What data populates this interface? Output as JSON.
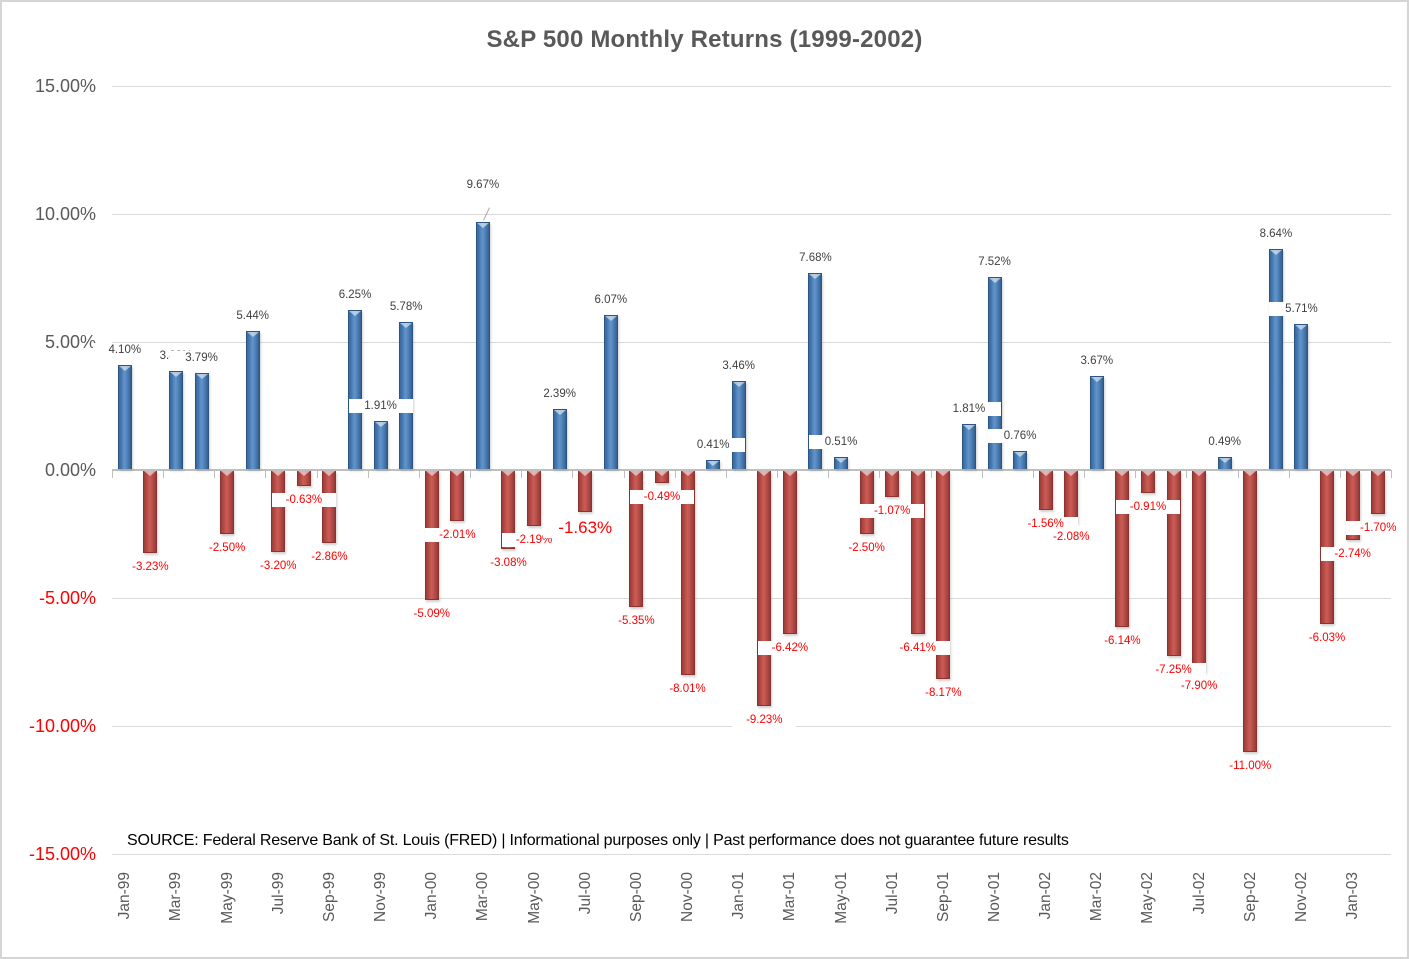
{
  "page": {
    "title": "S&P 500 Monthly Returns (1999-2002)",
    "source_note": "SOURCE: Federal Reserve Bank of St. Louis (FRED) | Informational purposes only | Past performance does not guarantee future results"
  },
  "colors": {
    "positive_bar": "#4F81BD",
    "negative_bar": "#C0504D",
    "positive_label": "#404040",
    "negative_label": "#FF0000",
    "axis_text": "#595959",
    "gridline": "#D9D9D9",
    "axis_line": "#BFBFBF",
    "title_text": "#595959"
  },
  "y_axis": {
    "tick_labels": [
      "15.00%",
      "10.00%",
      "5.00%",
      "0.00%",
      "-5.00%",
      "-10.00%",
      "-15.00%"
    ],
    "tick_values": [
      15,
      10,
      5,
      0,
      -5,
      -10,
      -15
    ]
  },
  "x_axis": {
    "tick_labels": [
      "Jan-99",
      "Mar-99",
      "May-99",
      "Jul-99",
      "Sep-99",
      "Nov-99",
      "Jan-00",
      "Mar-00",
      "May-00",
      "Jul-00",
      "Sep-00",
      "Nov-00",
      "Jan-01",
      "Mar-01",
      "May-01",
      "Jul-01",
      "Sep-01",
      "Nov-01",
      "Jan-02",
      "Mar-02",
      "May-02",
      "Jul-02",
      "Sep-02",
      "Nov-02",
      "Jan-03"
    ]
  },
  "chart_data": {
    "type": "bar",
    "title": "S&P 500 Monthly Returns (1999-2002)",
    "categories": [
      "Jan-99",
      "Feb-99",
      "Mar-99",
      "Apr-99",
      "May-99",
      "Jun-99",
      "Jul-99",
      "Aug-99",
      "Sep-99",
      "Oct-99",
      "Nov-99",
      "Dec-99",
      "Jan-00",
      "Feb-00",
      "Mar-00",
      "Apr-00",
      "May-00",
      "Jun-00",
      "Jul-00",
      "Aug-00",
      "Sep-00",
      "Oct-00",
      "Nov-00",
      "Dec-00",
      "Jan-01",
      "Feb-01",
      "Mar-01",
      "Apr-01",
      "May-01",
      "Jun-01",
      "Jul-01",
      "Aug-01",
      "Sep-01",
      "Oct-01",
      "Nov-01",
      "Dec-01",
      "Jan-02",
      "Feb-02",
      "Mar-02",
      "Apr-02",
      "May-02",
      "Jun-02",
      "Jul-02",
      "Aug-02",
      "Sep-02",
      "Oct-02",
      "Nov-02",
      "Dec-02",
      "Jan-03",
      "Feb-03"
    ],
    "values": [
      4.1,
      -3.23,
      3.88,
      3.79,
      -2.5,
      5.44,
      -3.2,
      -0.63,
      -2.86,
      6.25,
      1.91,
      5.78,
      -5.09,
      -2.01,
      9.67,
      -3.08,
      -2.19,
      2.39,
      -1.63,
      6.07,
      -5.35,
      -0.49,
      -8.01,
      0.41,
      3.46,
      -9.23,
      -6.42,
      7.68,
      0.51,
      -2.5,
      -1.07,
      -6.41,
      -8.17,
      1.81,
      7.52,
      0.76,
      -1.56,
      -2.08,
      3.67,
      -6.14,
      -0.91,
      -7.25,
      -7.9,
      0.49,
      -11.0,
      8.64,
      5.71,
      -6.03,
      -2.74,
      -1.7
    ],
    "data_labels": [
      "4.10%",
      "-3.23%",
      "3.88%",
      "3.79%",
      "-2.50%",
      "5.44%",
      "-3.20%",
      "-0.63%",
      "-2.86%",
      "6.25%",
      "1.91%",
      "5.78%",
      "-5.09%",
      "-2.01%",
      "9.67%",
      "-3.08%",
      "-2.19%",
      "2.39%",
      "-1.63%",
      "6.07%",
      "-5.35%",
      "-0.49%",
      "-8.01%",
      "0.41%",
      "3.46%",
      "-9.23%",
      "-6.42%",
      "7.68%",
      "0.51%",
      "-2.50%",
      "-1.07%",
      "-6.41%",
      "-8.17%",
      "1.81%",
      "7.52%",
      "0.76%",
      "-1.56%",
      "-2.08%",
      "3.67%",
      "-6.14%",
      "-0.91%",
      "-7.25%",
      "-7.90%",
      "0.49%",
      "-11.00%",
      "8.64%",
      "5.71%",
      "-6.03%",
      "-2.74%",
      "-1.70%"
    ],
    "ylim": [
      -15,
      15
    ],
    "y_tick_step": 5,
    "x_label_interval": 2,
    "grid": "horizontal",
    "legend": "none",
    "series_colors": {
      "positive": "#4F81BD",
      "negative": "#C0504D"
    },
    "annotations": {
      "leader_line_label_index": 14,
      "enlarged_label_index": 18
    }
  }
}
